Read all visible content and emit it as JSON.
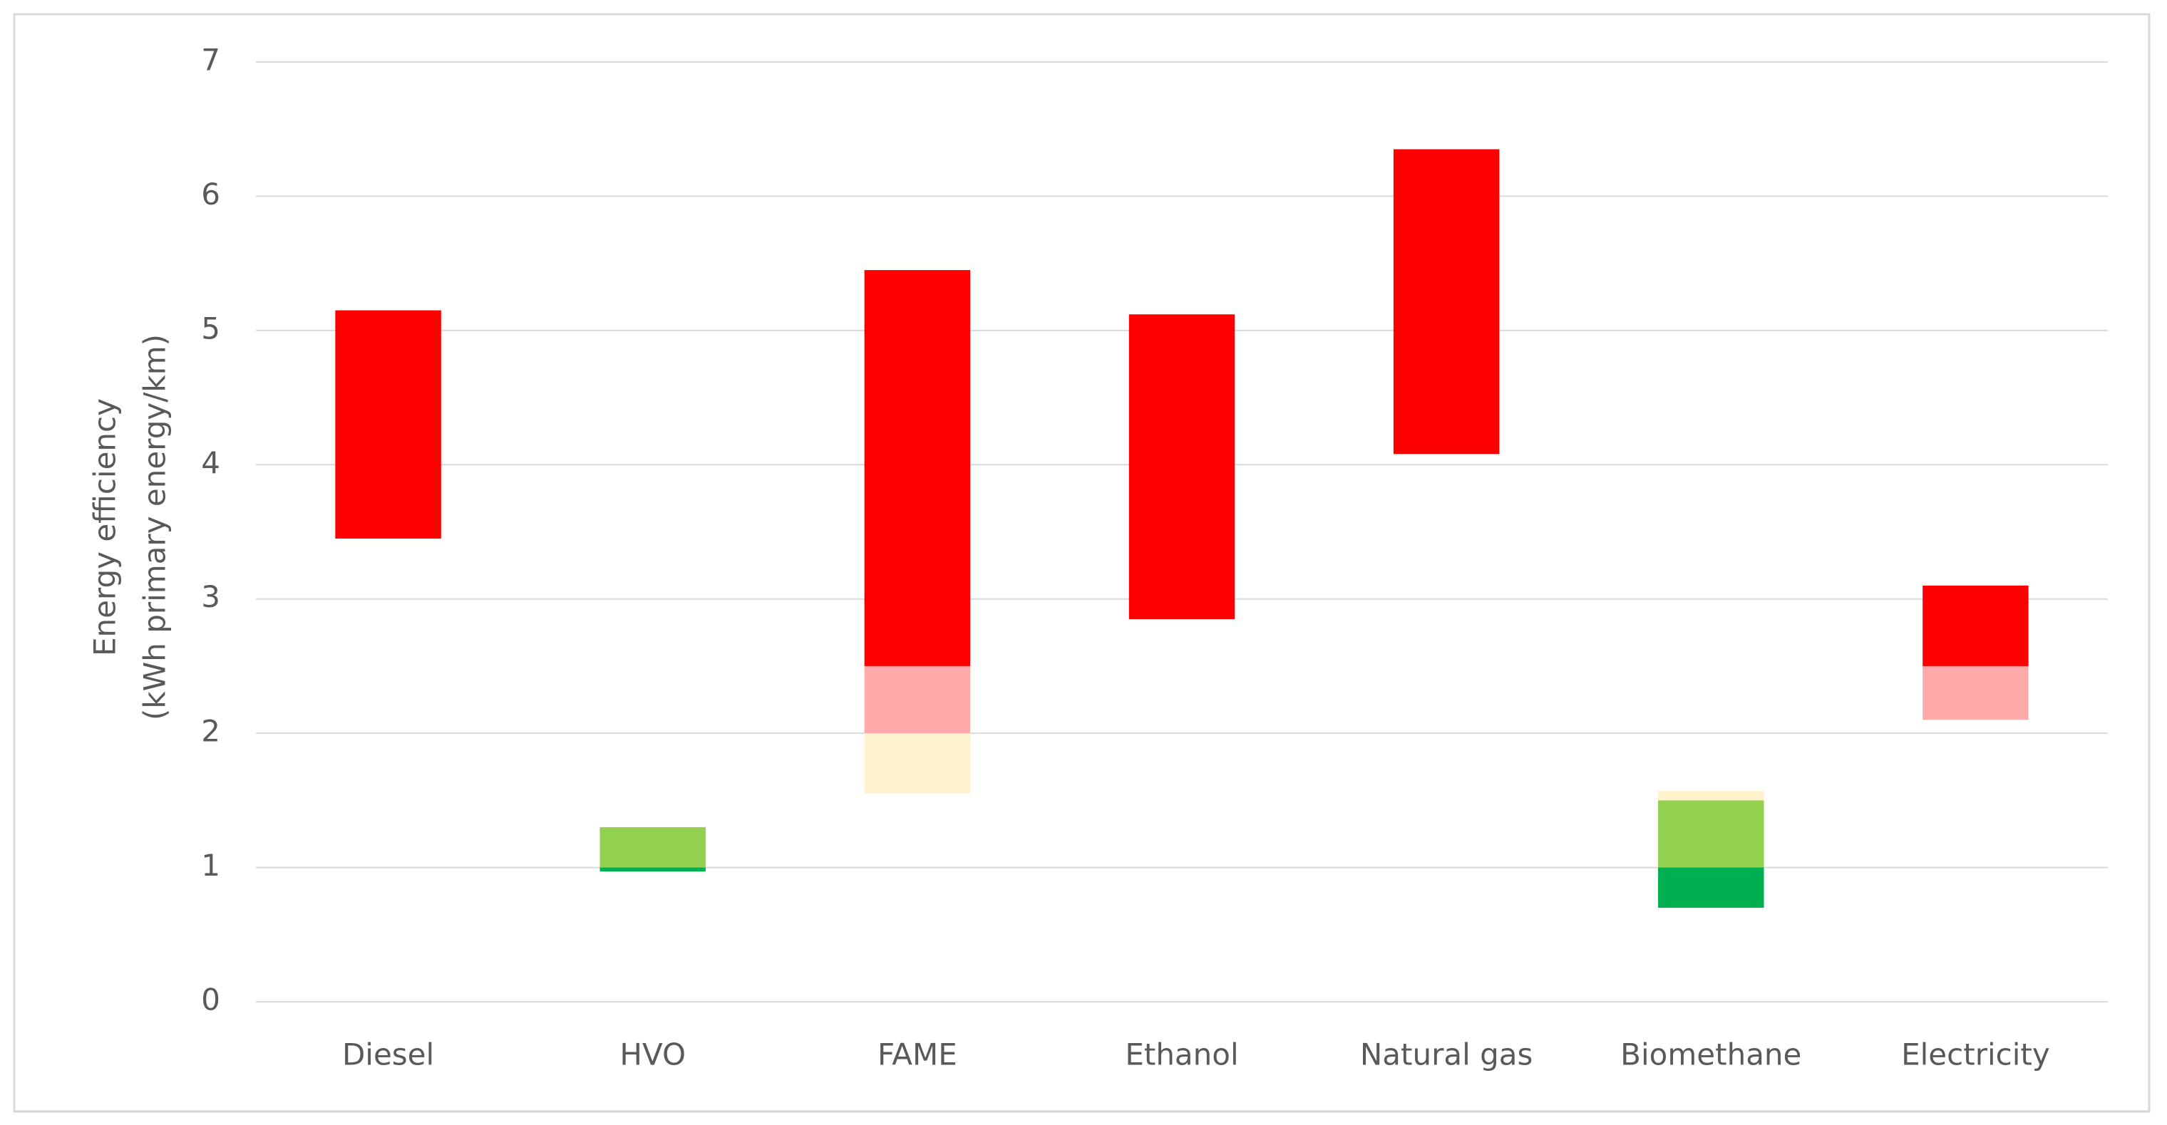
{
  "chart_data": {
    "type": "floating_bar",
    "ylabel": [
      "Energy efficiency",
      "(kWh primary energy/km)"
    ],
    "categories": [
      "Diesel",
      "HVO",
      "FAME",
      "Ethanol",
      "Natural gas",
      "Biomethane",
      "Electricity"
    ],
    "series": [
      {
        "color": "#00b050",
        "low": [
          null,
          0.97,
          null,
          null,
          null,
          0.7,
          null
        ],
        "high": [
          null,
          1.0,
          null,
          null,
          null,
          1.0,
          null
        ]
      },
      {
        "color": "#92d050",
        "low": [
          null,
          1.0,
          null,
          null,
          null,
          1.0,
          null
        ],
        "high": [
          null,
          1.3,
          null,
          null,
          null,
          1.5,
          null
        ]
      },
      {
        "color": "#fff2cc",
        "low": [
          null,
          null,
          1.55,
          null,
          null,
          1.5,
          null
        ],
        "high": [
          null,
          null,
          2.0,
          null,
          null,
          1.57,
          null
        ]
      },
      {
        "color": "#ffaaaa",
        "low": [
          null,
          null,
          2.0,
          null,
          null,
          null,
          2.1
        ],
        "high": [
          null,
          null,
          2.5,
          null,
          null,
          null,
          2.5
        ]
      },
      {
        "color": "#ff0000",
        "low": [
          3.45,
          null,
          2.5,
          2.85,
          4.08,
          null,
          2.5
        ],
        "high": [
          5.15,
          null,
          5.45,
          5.12,
          6.35,
          null,
          3.1
        ]
      }
    ],
    "ylim": [
      0,
      7
    ],
    "yticks": [
      0,
      1,
      2,
      3,
      4,
      5,
      6,
      7
    ],
    "grid": true
  }
}
